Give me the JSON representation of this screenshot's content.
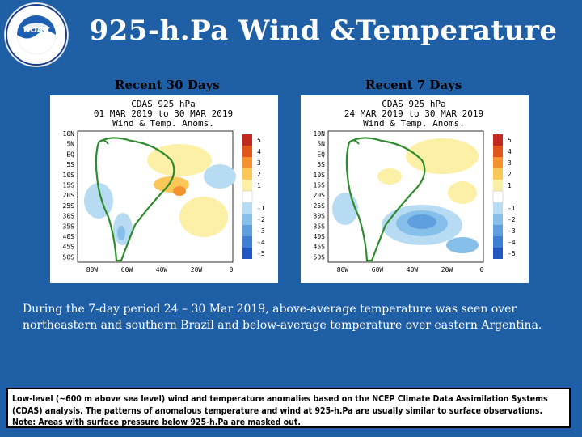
{
  "logo": {
    "text": "NOAA"
  },
  "title": "925-h.Pa Wind &Temperature",
  "panels": [
    {
      "caption": "Recent 30 Days",
      "map_title_1": "CDAS 925 hPa",
      "map_title_2": "01 MAR 2019 to 30 MAR 2019",
      "map_title_3": "Wind & Temp. Anoms."
    },
    {
      "caption": "Recent 7 Days",
      "map_title_1": "CDAS 925 hPa",
      "map_title_2": "24 MAR 2019 to 30 MAR 2019",
      "map_title_3": "Wind & Temp. Anoms."
    }
  ],
  "lat_labels": [
    "10N",
    "5N",
    "EQ",
    "5S",
    "10S",
    "15S",
    "20S",
    "25S",
    "30S",
    "35S",
    "40S",
    "45S",
    "50S"
  ],
  "lon_labels": [
    "80W",
    "60W",
    "40W",
    "20W",
    "0"
  ],
  "colorbar_labels": [
    "5",
    "4",
    "3",
    "2",
    "1",
    "-1",
    "-2",
    "-3",
    "-4",
    "-5"
  ],
  "colorbar_colors": [
    "#c2281f",
    "#e3531c",
    "#f3922f",
    "#fbc858",
    "#fcefa6",
    "#b7dbf2",
    "#86bfe9",
    "#5f9fdd",
    "#3f7fd3",
    "#2257c2"
  ],
  "description": "During the 7-day period 24 – 30 Mar 2019, above-average temperature was seen over northeastern and southern Brazil and below-average temperature over eastern Argentina.",
  "note": {
    "line1": "Low-level (~600 m above sea level) wind and temperature anomalies based on the NCEP Climate Data Assimilation Systems (CDAS) analysis. The patterns of anomalous temperature and wind at 925-h.Pa are usually similar to surface observations.",
    "label": "Note:",
    "line2": " Areas with surface pressure below 925-h.Pa are masked out."
  }
}
